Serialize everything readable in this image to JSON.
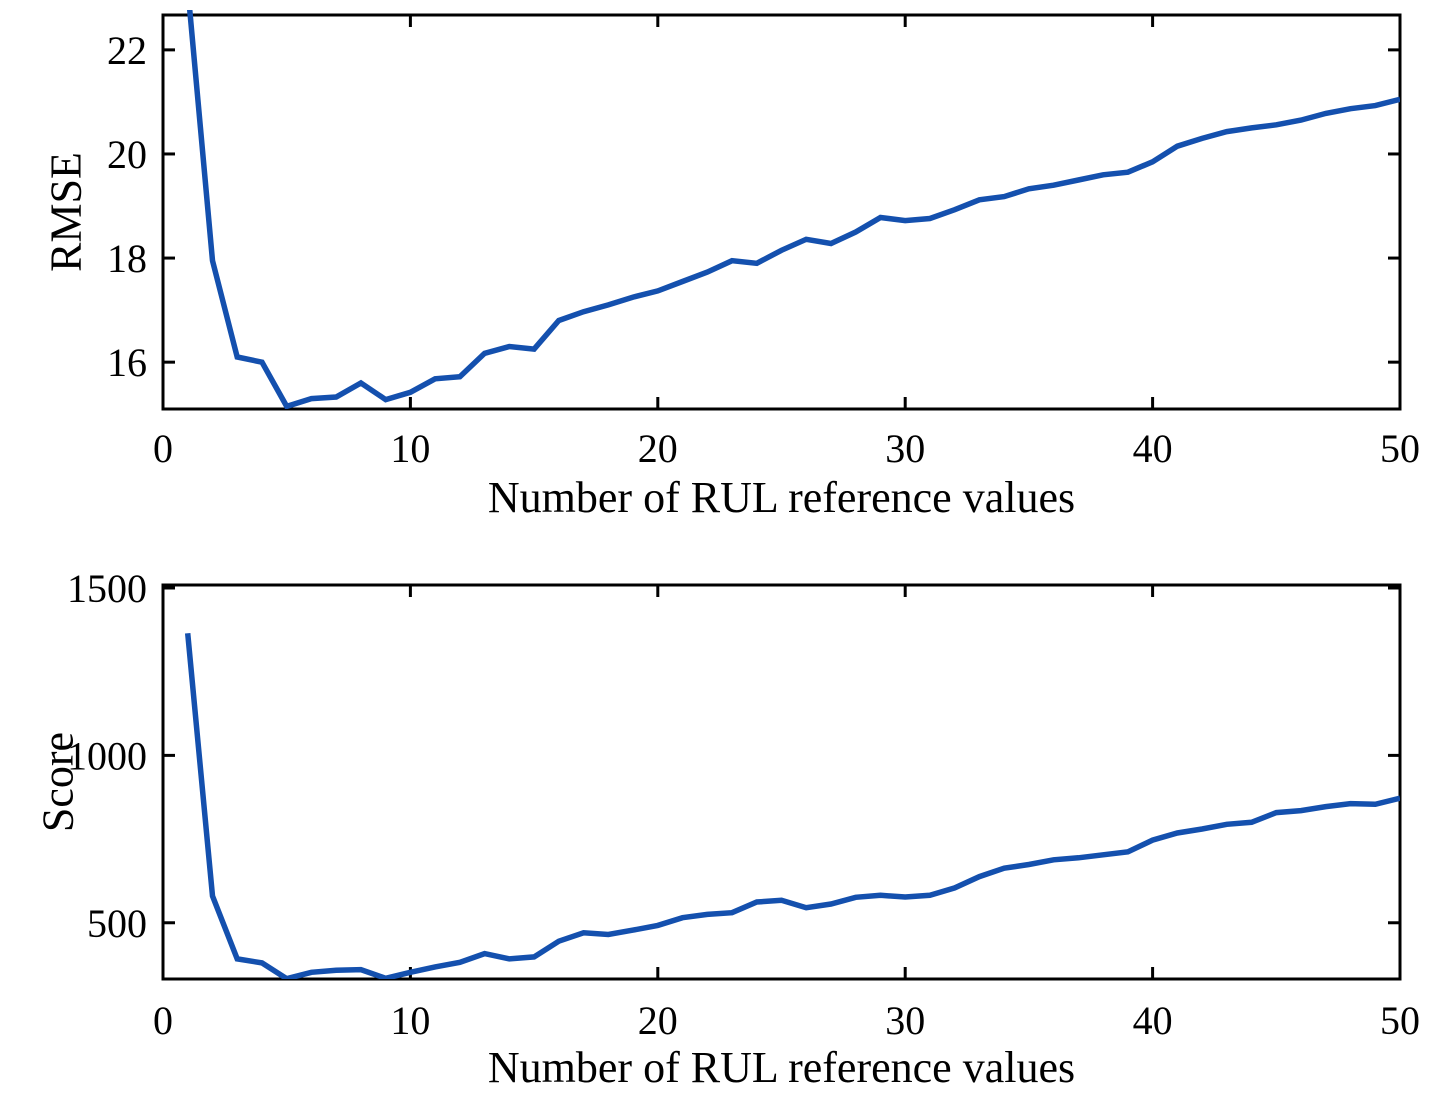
{
  "figure": {
    "background": "#ffffff",
    "line_color": "#1450ae",
    "axis_color": "#000000",
    "text_color": "#000000"
  },
  "chart_data": [
    {
      "type": "line",
      "title": "",
      "xlabel": "Number of RUL reference values",
      "ylabel": "RMSE",
      "xlim": [
        0,
        50
      ],
      "ylim": [
        15.1,
        22.67
      ],
      "xticks": [
        0,
        10,
        20,
        30,
        40,
        50
      ],
      "yticks": [
        16,
        18,
        20,
        22
      ],
      "grid": false,
      "legend_position": "none",
      "x": [
        1,
        2,
        3,
        4,
        5,
        6,
        7,
        8,
        9,
        10,
        11,
        12,
        13,
        14,
        15,
        16,
        17,
        18,
        19,
        20,
        21,
        22,
        23,
        24,
        25,
        26,
        27,
        28,
        29,
        30,
        31,
        32,
        33,
        34,
        35,
        36,
        37,
        38,
        39,
        40,
        41,
        42,
        43,
        44,
        45,
        46,
        47,
        48,
        49,
        50
      ],
      "y": [
        23.2,
        17.95,
        16.1,
        16.0,
        15.15,
        15.3,
        15.33,
        15.6,
        15.28,
        15.42,
        15.68,
        15.72,
        16.17,
        16.3,
        16.25,
        16.8,
        16.97,
        17.1,
        17.25,
        17.37,
        17.55,
        17.73,
        17.95,
        17.9,
        18.15,
        18.36,
        18.28,
        18.5,
        18.78,
        18.72,
        18.76,
        18.93,
        19.12,
        19.18,
        19.33,
        19.4,
        19.5,
        19.6,
        19.65,
        19.85,
        20.15,
        20.3,
        20.43,
        20.5,
        20.56,
        20.65,
        20.78,
        20.87,
        20.93,
        21.05
      ]
    },
    {
      "type": "line",
      "title": "",
      "xlabel": "Number of RUL reference values",
      "ylabel": "Score",
      "xlim": [
        0,
        50
      ],
      "ylim": [
        332,
        1509
      ],
      "xticks": [
        0,
        10,
        20,
        30,
        40,
        50
      ],
      "yticks": [
        500,
        1000,
        1500
      ],
      "grid": false,
      "legend_position": "none",
      "x": [
        1,
        2,
        3,
        4,
        5,
        6,
        7,
        8,
        9,
        10,
        11,
        12,
        13,
        14,
        15,
        16,
        17,
        18,
        19,
        20,
        21,
        22,
        23,
        24,
        25,
        26,
        27,
        28,
        29,
        30,
        31,
        32,
        33,
        34,
        35,
        36,
        37,
        38,
        39,
        40,
        41,
        42,
        43,
        44,
        45,
        46,
        47,
        48,
        49,
        50
      ],
      "y": [
        1365,
        580,
        392,
        380,
        333,
        352,
        358,
        360,
        334,
        352,
        368,
        382,
        408,
        392,
        398,
        445,
        470,
        465,
        478,
        492,
        515,
        525,
        530,
        562,
        567,
        545,
        556,
        576,
        582,
        577,
        582,
        604,
        638,
        663,
        674,
        688,
        694,
        703,
        712,
        747,
        768,
        780,
        794,
        800,
        829,
        835,
        847,
        856,
        854,
        872
      ]
    }
  ]
}
